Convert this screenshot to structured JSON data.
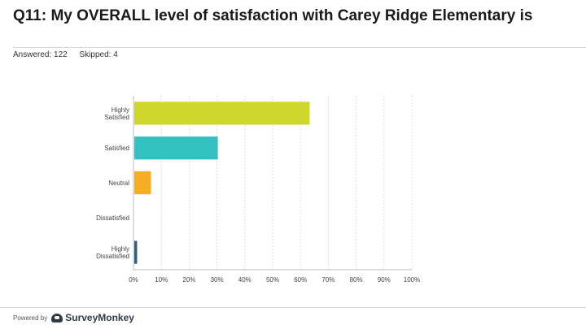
{
  "header": {
    "title": "Q11: My OVERALL level of satisfaction with Carey Ridge Elementary is",
    "answered": "Answered: 122",
    "skipped": "Skipped: 4"
  },
  "footer": {
    "powered_by": "Powered by",
    "brand": "SurveyMonkey"
  },
  "chart_data": {
    "type": "bar",
    "orientation": "horizontal",
    "categories": [
      [
        "Highly",
        "Satisfied"
      ],
      [
        "Satisfied"
      ],
      [
        "Neutral"
      ],
      [
        "Dissatisfied"
      ],
      [
        "Highly",
        "Dissatisfied"
      ]
    ],
    "values": [
      63,
      30,
      6,
      0,
      1
    ],
    "colors": [
      "#cfd62c",
      "#33c0c0",
      "#f6ad24",
      "#e04e4e",
      "#2b5d85"
    ],
    "xlim": [
      0,
      100
    ],
    "xticks": [
      "0%",
      "10%",
      "20%",
      "30%",
      "40%",
      "50%",
      "60%",
      "70%",
      "80%",
      "90%",
      "100%"
    ],
    "grid": true
  }
}
